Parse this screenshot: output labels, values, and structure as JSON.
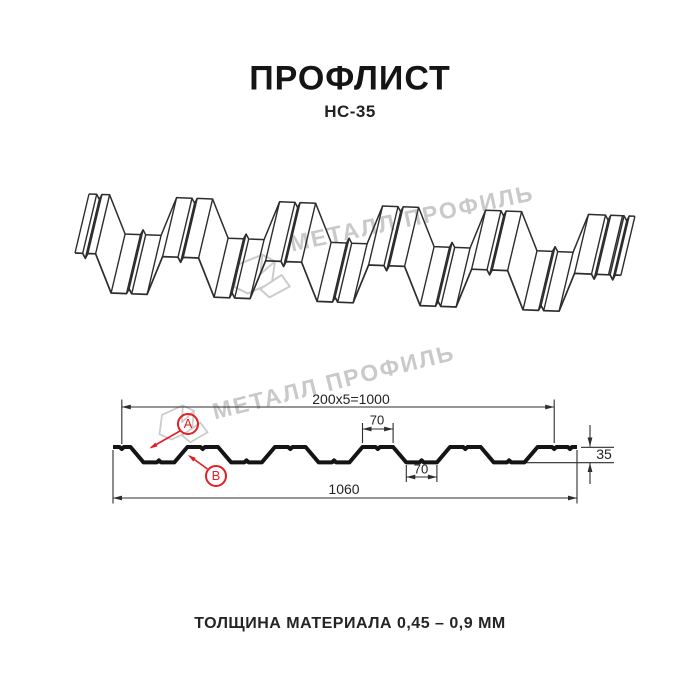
{
  "header": {
    "title": "ПРОФЛИСТ",
    "subtitle": "НС-35"
  },
  "watermark": {
    "text": "МЕТАЛЛ ПРОФИЛЬ"
  },
  "section_dimensions": {
    "top_total": "200x5=1000",
    "crest_width": "70",
    "valley_width": "70",
    "overall_width": "1060",
    "profile_height": "35",
    "marker_a": "A",
    "marker_b": "B"
  },
  "footer": {
    "caption": "ТОЛЩИНА МАТЕРИАЛА 0,45 – 0,9 ММ"
  },
  "colors": {
    "line": "#2d2d2d",
    "profile": "#141414",
    "accent_red": "#e31e24",
    "watermark": "#cccccc"
  }
}
